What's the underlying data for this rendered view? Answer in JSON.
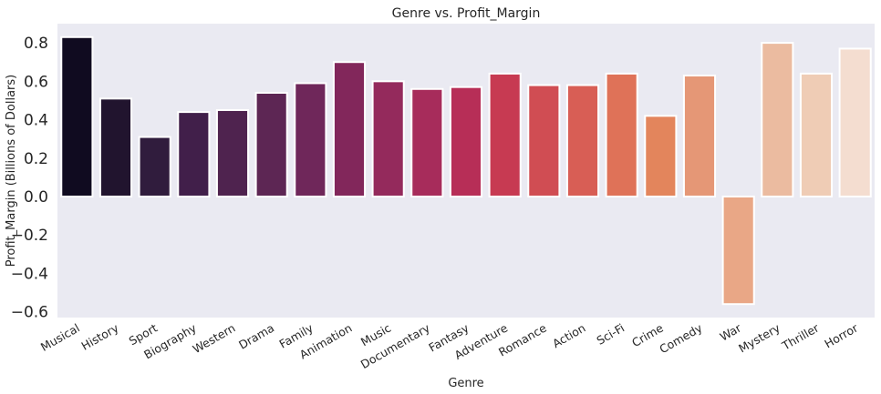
{
  "chart_data": {
    "type": "bar",
    "title": "Genre vs. Profit_Margin",
    "xlabel": "Genre",
    "ylabel": "Profit_Margin (Billions of Dollars)",
    "categories": [
      "Musical",
      "History",
      "Sport",
      "Biography",
      "Western",
      "Drama",
      "Family",
      "Animation",
      "Music",
      "Documentary",
      "Fantasy",
      "Adventure",
      "Romance",
      "Action",
      "Sci-Fi",
      "Crime",
      "Comedy",
      "War",
      "Mystery",
      "Thriller",
      "Horror"
    ],
    "values": [
      0.83,
      0.51,
      0.31,
      0.44,
      0.45,
      0.54,
      0.59,
      0.7,
      0.6,
      0.56,
      0.57,
      0.64,
      0.58,
      0.58,
      0.64,
      0.42,
      0.63,
      -0.56,
      0.8,
      0.64,
      0.77
    ],
    "ylim": [
      -0.63,
      0.9
    ],
    "yticks": [
      -0.6,
      -0.4,
      -0.2,
      0.0,
      0.2,
      0.4,
      0.6,
      0.8
    ],
    "ytick_labels": [
      "−0.6",
      "−0.4",
      "−0.2",
      "0.0",
      "0.2",
      "0.4",
      "0.6",
      "0.8"
    ],
    "grid": false,
    "legend": "none",
    "background_color": "#eaeaf2",
    "bar_edge_color": "#ffffff",
    "colors": [
      "#100b20",
      "#21142e",
      "#301c3d",
      "#411f4a",
      "#4f234f",
      "#5d2654",
      "#6f275a",
      "#82275b",
      "#942a5c",
      "#a72c5b",
      "#b72e57",
      "#c73a52",
      "#d04d53",
      "#d85e55",
      "#df7258",
      "#e3855c",
      "#e59776",
      "#e9a786",
      "#ebbba0",
      "#efccb5",
      "#f4ddd0"
    ]
  }
}
